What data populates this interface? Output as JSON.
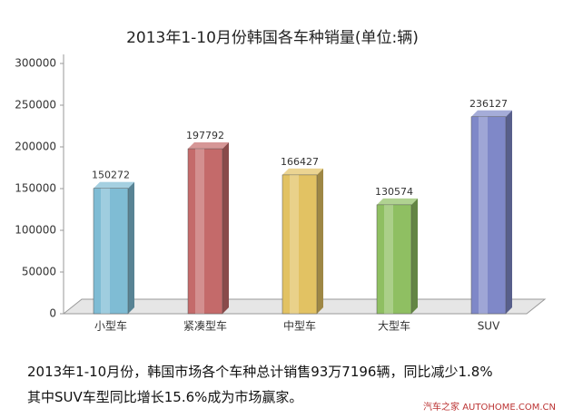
{
  "chart_data": {
    "type": "bar",
    "title": "2013年1-10月份韩国各车种销量(单位:辆)",
    "categories": [
      "小型车",
      "紧凑型车",
      "中型车",
      "大型车",
      "SUV"
    ],
    "values": [
      150272,
      197792,
      166427,
      130574,
      236127
    ],
    "colors": [
      "#7fbcd4",
      "#c46a6a",
      "#e2c263",
      "#8fbf62",
      "#7f88c8"
    ],
    "ylim": [
      0,
      300000
    ],
    "yticks": [
      0,
      50000,
      100000,
      150000,
      200000,
      250000,
      300000
    ]
  },
  "caption": [
    "2013年1-10月份，韩国市场各个车种总计销售93万7196辆，同比减少1.8%",
    "其中SUV车型同比增长15.6%成为市场赢家。"
  ],
  "watermark": "汽车之家 AUTOHOME.COM.CN"
}
